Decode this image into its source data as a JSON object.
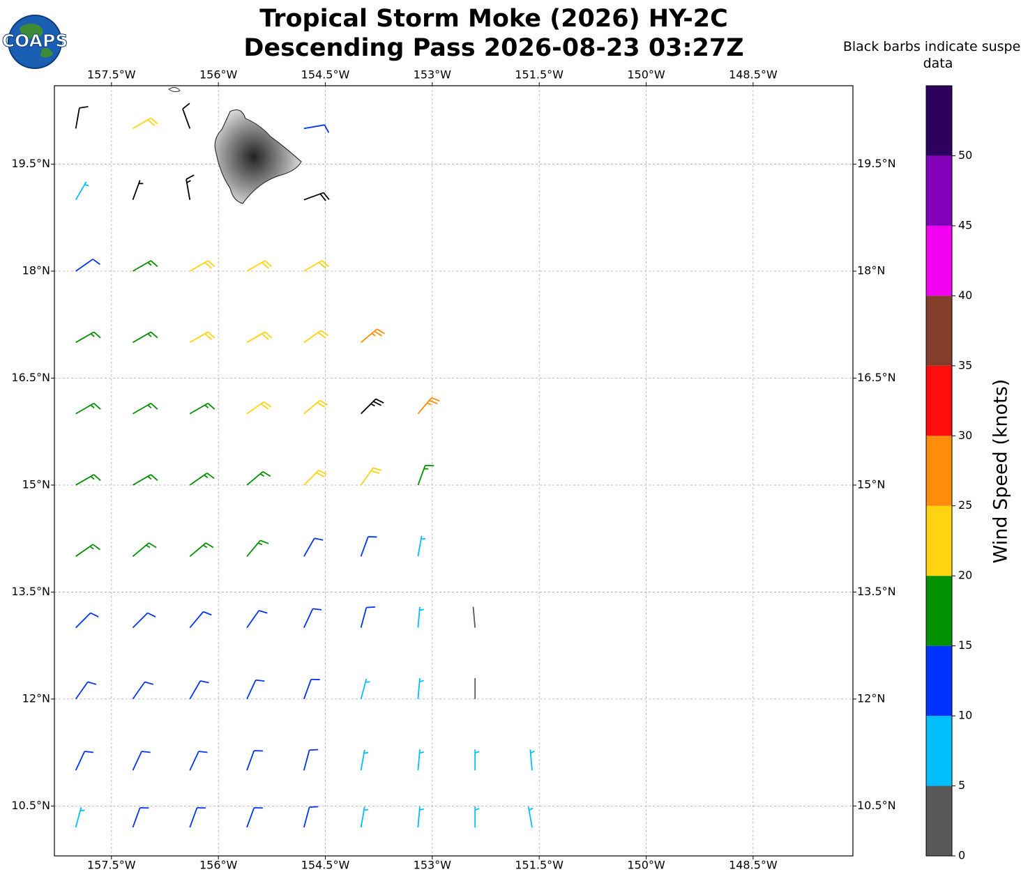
{
  "chart_data": {
    "type": "barbs",
    "title": "Tropical Storm Moke (2026) HY-2C",
    "subtitle": "Descending Pass 2026-08-23 03:27Z",
    "note": "Black barbs indicate suspect data",
    "logo_text": "COAPS",
    "xlim": [
      -158.3,
      -147.1
    ],
    "ylim": [
      9.8,
      20.6
    ],
    "xticks": [
      {
        "value": -157.5,
        "label": "157.5°W"
      },
      {
        "value": -156,
        "label": "156°W"
      },
      {
        "value": -154.5,
        "label": "154.5°W"
      },
      {
        "value": -153,
        "label": "153°W"
      },
      {
        "value": -151.5,
        "label": "151.5°W"
      },
      {
        "value": -150,
        "label": "150°W"
      },
      {
        "value": -148.5,
        "label": "148.5°W"
      }
    ],
    "yticks": [
      {
        "value": 10.5,
        "label": "10.5°N"
      },
      {
        "value": 12,
        "label": "12°N"
      },
      {
        "value": 13.5,
        "label": "13.5°N"
      },
      {
        "value": 15,
        "label": "15°N"
      },
      {
        "value": 16.5,
        "label": "16.5°N"
      },
      {
        "value": 18,
        "label": "18°N"
      },
      {
        "value": 19.5,
        "label": "19.5°N"
      }
    ],
    "grid": true,
    "suspect_color": "#000000",
    "colorbar": {
      "label": "Wind Speed (knots)",
      "lim": [
        0,
        55
      ],
      "ticks": [
        0,
        5,
        10,
        15,
        20,
        25,
        30,
        35,
        40,
        45,
        50
      ],
      "colors": [
        "#595959",
        "#00bfff",
        "#0033ff",
        "#009100",
        "#ffd30f",
        "#ff8c0a",
        "#ff0d0d",
        "#823d2b",
        "#f200f2",
        "#8200b8",
        "#2e005e"
      ]
    },
    "rows": [
      {
        "lat": 10.2,
        "lon": [
          -158,
          -157.2,
          -156.4,
          -155.6,
          -154.8,
          -154,
          -153.2,
          -152.4,
          -151.6
        ],
        "speed": [
          9,
          12,
          12,
          11,
          11,
          9,
          8,
          8,
          7
        ],
        "dir": [
          15,
          20,
          20,
          20,
          15,
          10,
          5,
          0,
          350
        ],
        "suspect": [
          0,
          0,
          0,
          0,
          0,
          0,
          0,
          0,
          0
        ]
      },
      {
        "lat": 11,
        "lon": [
          -158,
          -157.2,
          -156.4,
          -155.6,
          -154.8,
          -154,
          -153.2,
          -152.4,
          -151.6
        ],
        "speed": [
          12,
          13,
          13,
          12,
          11,
          9,
          8,
          7,
          6
        ],
        "dir": [
          25,
          25,
          25,
          20,
          15,
          10,
          5,
          0,
          355
        ],
        "suspect": [
          0,
          0,
          0,
          0,
          0,
          0,
          0,
          0,
          0
        ]
      },
      {
        "lat": 12,
        "lon": [
          -158,
          -157.2,
          -156.4,
          -155.6,
          -154.8,
          -154,
          -153.2,
          -152.4
        ],
        "speed": [
          13,
          13,
          13,
          12,
          11,
          9,
          8,
          4
        ],
        "dir": [
          35,
          35,
          30,
          25,
          20,
          15,
          5,
          0
        ],
        "suspect": [
          0,
          0,
          0,
          0,
          0,
          0,
          0,
          0
        ]
      },
      {
        "lat": 13,
        "lon": [
          -158,
          -157.2,
          -156.4,
          -155.6,
          -154.8,
          -154,
          -153.2,
          -152.4
        ],
        "speed": [
          13,
          14,
          14,
          13,
          12,
          10,
          8,
          4
        ],
        "dir": [
          45,
          45,
          40,
          35,
          25,
          15,
          5,
          355
        ],
        "suspect": [
          0,
          0,
          0,
          0,
          0,
          0,
          0,
          0
        ]
      },
      {
        "lat": 14,
        "lon": [
          -158,
          -157.2,
          -156.4,
          -155.6,
          -154.8,
          -154,
          -153.2
        ],
        "speed": [
          16,
          16,
          17,
          15,
          12,
          11,
          9
        ],
        "dir": [
          55,
          50,
          50,
          40,
          30,
          20,
          10
        ],
        "suspect": [
          0,
          0,
          0,
          0,
          0,
          0,
          0
        ]
      },
      {
        "lat": 15,
        "lon": [
          -158,
          -157.2,
          -156.4,
          -155.6,
          -154.8,
          -154,
          -153.2
        ],
        "speed": [
          17,
          18,
          18,
          18,
          21,
          20,
          16
        ],
        "dir": [
          60,
          60,
          55,
          50,
          45,
          35,
          20
        ],
        "suspect": [
          0,
          0,
          0,
          0,
          0,
          0,
          0
        ]
      },
      {
        "lat": 16,
        "lon": [
          -158,
          -157.2,
          -156.4,
          -155.6,
          -154.8,
          -154,
          -153.2
        ],
        "speed": [
          16,
          17,
          18,
          21,
          22,
          28,
          27
        ],
        "dir": [
          60,
          60,
          60,
          55,
          50,
          45,
          40
        ],
        "suspect": [
          0,
          0,
          0,
          0,
          0,
          1,
          0
        ]
      },
      {
        "lat": 17,
        "lon": [
          -158,
          -157.2,
          -156.4,
          -155.6,
          -154.8,
          -154
        ],
        "speed": [
          16,
          17,
          22,
          23,
          24,
          27
        ],
        "dir": [
          60,
          60,
          60,
          60,
          55,
          50
        ],
        "suspect": [
          0,
          0,
          0,
          0,
          0,
          0
        ]
      },
      {
        "lat": 18,
        "lon": [
          -158,
          -157.2,
          -156.4,
          -155.6,
          -154.8
        ],
        "speed": [
          12,
          17,
          21,
          22,
          23
        ],
        "dir": [
          55,
          60,
          60,
          60,
          60
        ],
        "suspect": [
          0,
          0,
          0,
          0,
          0
        ]
      },
      {
        "lat": 19,
        "lon": [
          -158,
          -157.2,
          -156.4,
          -154.8
        ],
        "speed": [
          8,
          9,
          18,
          20
        ],
        "dir": [
          30,
          20,
          350,
          70
        ],
        "suspect": [
          0,
          1,
          1,
          1
        ]
      },
      {
        "lat": 20,
        "lon": [
          -158,
          -157.2,
          -156.4,
          -154.8
        ],
        "speed": [
          10,
          20,
          12,
          12
        ],
        "dir": [
          10,
          60,
          340,
          80
        ],
        "suspect": [
          1,
          0,
          1,
          0
        ]
      }
    ]
  }
}
